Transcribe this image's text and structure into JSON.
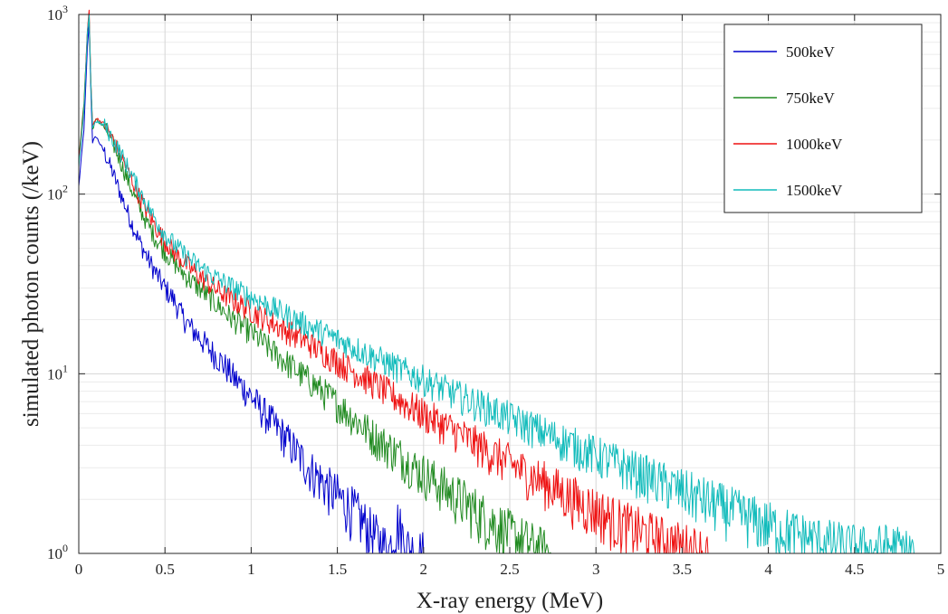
{
  "chart_data": {
    "type": "line",
    "title": "",
    "xlabel": "X-ray energy (MeV)",
    "ylabel": "simulated photon counts (/keV)",
    "xlim": [
      0,
      5
    ],
    "ylim": [
      1,
      1000
    ],
    "yscale": "log",
    "grid": true,
    "legend_position": "top-right",
    "x_ticks": [
      "0",
      "0.5",
      "1",
      "1.5",
      "2",
      "2.5",
      "3",
      "3.5",
      "4",
      "4.5",
      "5"
    ],
    "y_ticks": [
      "10",
      "10",
      "10",
      "10"
    ],
    "y_tick_exponents": [
      "0",
      "1",
      "2",
      "3"
    ],
    "series": [
      {
        "name": "500keV",
        "color": "#0000cc",
        "points": [
          [
            0.0,
            110
          ],
          [
            0.03,
            230
          ],
          [
            0.05,
            650
          ],
          [
            0.06,
            900
          ],
          [
            0.07,
            380
          ],
          [
            0.08,
            195
          ],
          [
            0.1,
            210
          ],
          [
            0.15,
            170
          ],
          [
            0.2,
            130
          ],
          [
            0.25,
            96
          ],
          [
            0.3,
            72
          ],
          [
            0.35,
            55
          ],
          [
            0.4,
            44
          ],
          [
            0.45,
            36
          ],
          [
            0.5,
            30
          ],
          [
            0.55,
            26
          ],
          [
            0.6,
            21
          ],
          [
            0.65,
            18
          ],
          [
            0.7,
            16
          ],
          [
            0.75,
            14
          ],
          [
            0.8,
            12.5
          ],
          [
            0.85,
            11
          ],
          [
            0.9,
            9.5
          ],
          [
            0.95,
            8.5
          ],
          [
            1.0,
            7.5
          ],
          [
            1.05,
            6.5
          ],
          [
            1.1,
            5.7
          ],
          [
            1.15,
            5.0
          ],
          [
            1.2,
            4.4
          ],
          [
            1.25,
            3.8
          ],
          [
            1.3,
            3.3
          ],
          [
            1.35,
            2.9
          ],
          [
            1.4,
            2.6
          ],
          [
            1.45,
            2.3
          ],
          [
            1.5,
            2.1
          ],
          [
            1.55,
            1.9
          ],
          [
            1.6,
            1.7
          ],
          [
            1.65,
            1.5
          ],
          [
            1.7,
            1.3
          ],
          [
            1.75,
            1.15
          ],
          [
            1.8,
            1.05
          ],
          [
            1.85,
            1.5
          ],
          [
            1.9,
            1.1
          ],
          [
            1.95,
            1.0
          ],
          [
            2.0,
            1.0
          ]
        ]
      },
      {
        "name": "750keV",
        "color": "#228b22",
        "points": [
          [
            0.0,
            160
          ],
          [
            0.03,
            320
          ],
          [
            0.05,
            800
          ],
          [
            0.06,
            1000
          ],
          [
            0.07,
            420
          ],
          [
            0.08,
            230
          ],
          [
            0.1,
            260
          ],
          [
            0.15,
            235
          ],
          [
            0.2,
            190
          ],
          [
            0.25,
            145
          ],
          [
            0.3,
            110
          ],
          [
            0.35,
            85
          ],
          [
            0.4,
            68
          ],
          [
            0.45,
            56
          ],
          [
            0.5,
            48
          ],
          [
            0.55,
            42
          ],
          [
            0.6,
            37
          ],
          [
            0.65,
            33
          ],
          [
            0.7,
            30
          ],
          [
            0.75,
            27
          ],
          [
            0.8,
            24.5
          ],
          [
            0.85,
            22
          ],
          [
            0.9,
            20
          ],
          [
            0.95,
            18.5
          ],
          [
            1.0,
            17
          ],
          [
            1.05,
            15.5
          ],
          [
            1.1,
            14
          ],
          [
            1.15,
            12.8
          ],
          [
            1.2,
            11.7
          ],
          [
            1.25,
            10.7
          ],
          [
            1.3,
            9.8
          ],
          [
            1.35,
            9.0
          ],
          [
            1.4,
            8.2
          ],
          [
            1.45,
            7.5
          ],
          [
            1.5,
            6.8
          ],
          [
            1.55,
            6.2
          ],
          [
            1.6,
            5.6
          ],
          [
            1.65,
            5.1
          ],
          [
            1.7,
            4.6
          ],
          [
            1.75,
            4.2
          ],
          [
            1.8,
            3.9
          ],
          [
            1.85,
            3.6
          ],
          [
            1.9,
            3.3
          ],
          [
            1.95,
            3.0
          ],
          [
            2.0,
            2.8
          ],
          [
            2.05,
            2.6
          ],
          [
            2.1,
            2.4
          ],
          [
            2.15,
            2.2
          ],
          [
            2.2,
            2.05
          ],
          [
            2.25,
            1.9
          ],
          [
            2.3,
            1.75
          ],
          [
            2.35,
            1.6
          ],
          [
            2.4,
            1.5
          ],
          [
            2.45,
            1.4
          ],
          [
            2.5,
            1.3
          ],
          [
            2.55,
            1.22
          ],
          [
            2.6,
            1.15
          ],
          [
            2.65,
            1.08
          ],
          [
            2.7,
            1.03
          ],
          [
            2.75,
            1.0
          ]
        ]
      },
      {
        "name": "1000keV",
        "color": "#ee1111",
        "points": [
          [
            0.0,
            150
          ],
          [
            0.03,
            300
          ],
          [
            0.05,
            820
          ],
          [
            0.06,
            1050
          ],
          [
            0.07,
            430
          ],
          [
            0.08,
            240
          ],
          [
            0.1,
            265
          ],
          [
            0.15,
            245
          ],
          [
            0.2,
            200
          ],
          [
            0.25,
            160
          ],
          [
            0.3,
            125
          ],
          [
            0.35,
            98
          ],
          [
            0.4,
            79
          ],
          [
            0.45,
            65
          ],
          [
            0.5,
            55
          ],
          [
            0.55,
            48
          ],
          [
            0.6,
            43
          ],
          [
            0.65,
            38.5
          ],
          [
            0.7,
            35
          ],
          [
            0.75,
            32
          ],
          [
            0.8,
            29.5
          ],
          [
            0.85,
            27.5
          ],
          [
            0.9,
            25.5
          ],
          [
            0.95,
            24
          ],
          [
            1.0,
            22.5
          ],
          [
            1.05,
            21
          ],
          [
            1.1,
            19.8
          ],
          [
            1.15,
            18.6
          ],
          [
            1.2,
            17.5
          ],
          [
            1.25,
            16.5
          ],
          [
            1.3,
            15.5
          ],
          [
            1.35,
            14.5
          ],
          [
            1.4,
            13.5
          ],
          [
            1.45,
            12.6
          ],
          [
            1.5,
            11.8
          ],
          [
            1.55,
            11.0
          ],
          [
            1.6,
            10.3
          ],
          [
            1.65,
            9.6
          ],
          [
            1.7,
            9.0
          ],
          [
            1.75,
            8.4
          ],
          [
            1.8,
            7.8
          ],
          [
            1.85,
            7.3
          ],
          [
            1.9,
            6.8
          ],
          [
            1.95,
            6.4
          ],
          [
            2.0,
            6.0
          ],
          [
            2.1,
            5.3
          ],
          [
            2.2,
            4.7
          ],
          [
            2.3,
            4.1
          ],
          [
            2.4,
            3.6
          ],
          [
            2.5,
            3.2
          ],
          [
            2.6,
            2.8
          ],
          [
            2.7,
            2.5
          ],
          [
            2.8,
            2.2
          ],
          [
            2.9,
            1.95
          ],
          [
            3.0,
            1.75
          ],
          [
            3.1,
            1.55
          ],
          [
            3.2,
            1.4
          ],
          [
            3.3,
            1.28
          ],
          [
            3.4,
            1.18
          ],
          [
            3.5,
            1.1
          ],
          [
            3.6,
            1.05
          ],
          [
            3.65,
            1.0
          ]
        ]
      },
      {
        "name": "1500keV",
        "color": "#11bbbb",
        "points": [
          [
            0.0,
            140
          ],
          [
            0.03,
            290
          ],
          [
            0.05,
            780
          ],
          [
            0.06,
            980
          ],
          [
            0.07,
            420
          ],
          [
            0.08,
            235
          ],
          [
            0.1,
            255
          ],
          [
            0.15,
            240
          ],
          [
            0.2,
            200
          ],
          [
            0.25,
            165
          ],
          [
            0.3,
            132
          ],
          [
            0.35,
            106
          ],
          [
            0.4,
            86
          ],
          [
            0.45,
            71
          ],
          [
            0.5,
            60
          ],
          [
            0.55,
            53
          ],
          [
            0.6,
            47.5
          ],
          [
            0.65,
            43
          ],
          [
            0.7,
            39.5
          ],
          [
            0.75,
            36.5
          ],
          [
            0.8,
            34
          ],
          [
            0.85,
            32
          ],
          [
            0.9,
            30
          ],
          [
            0.95,
            28.3
          ],
          [
            1.0,
            26.8
          ],
          [
            1.05,
            25.4
          ],
          [
            1.1,
            24
          ],
          [
            1.15,
            22.7
          ],
          [
            1.2,
            21.5
          ],
          [
            1.25,
            20.3
          ],
          [
            1.3,
            19.2
          ],
          [
            1.35,
            18.2
          ],
          [
            1.4,
            17.3
          ],
          [
            1.45,
            16.4
          ],
          [
            1.5,
            15.6
          ],
          [
            1.55,
            14.8
          ],
          [
            1.6,
            14.0
          ],
          [
            1.65,
            13.3
          ],
          [
            1.7,
            12.6
          ],
          [
            1.75,
            12.0
          ],
          [
            1.8,
            11.4
          ],
          [
            1.85,
            10.8
          ],
          [
            1.9,
            10.3
          ],
          [
            1.95,
            9.8
          ],
          [
            2.0,
            9.3
          ],
          [
            2.1,
            8.4
          ],
          [
            2.2,
            7.6
          ],
          [
            2.3,
            6.9
          ],
          [
            2.4,
            6.3
          ],
          [
            2.5,
            5.7
          ],
          [
            2.6,
            5.2
          ],
          [
            2.7,
            4.7
          ],
          [
            2.8,
            4.3
          ],
          [
            2.9,
            3.9
          ],
          [
            3.0,
            3.55
          ],
          [
            3.1,
            3.25
          ],
          [
            3.2,
            2.95
          ],
          [
            3.3,
            2.7
          ],
          [
            3.4,
            2.45
          ],
          [
            3.5,
            2.25
          ],
          [
            3.6,
            2.05
          ],
          [
            3.7,
            1.88
          ],
          [
            3.8,
            1.72
          ],
          [
            3.9,
            1.58
          ],
          [
            4.0,
            1.45
          ],
          [
            4.1,
            1.34
          ],
          [
            4.2,
            1.25
          ],
          [
            4.3,
            1.18
          ],
          [
            4.4,
            1.12
          ],
          [
            4.5,
            1.08
          ],
          [
            4.6,
            1.05
          ],
          [
            4.7,
            1.1
          ],
          [
            4.8,
            1.03
          ],
          [
            4.85,
            1.0
          ]
        ]
      }
    ]
  }
}
